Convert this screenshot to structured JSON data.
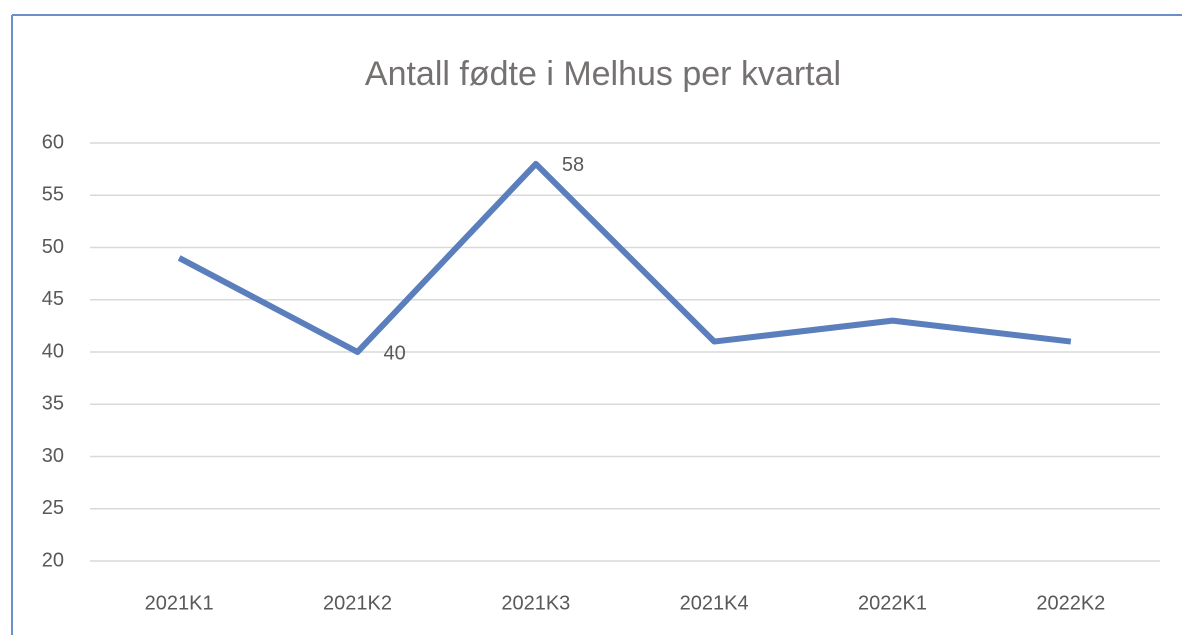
{
  "chart_data": {
    "type": "line",
    "title": "Antall fødte i Melhus per kvartal",
    "categories": [
      "2021K1",
      "2021K2",
      "2021K3",
      "2021K4",
      "2022K1",
      "2022K2"
    ],
    "values": [
      49,
      40,
      58,
      41,
      43,
      41
    ],
    "value_labels": [
      null,
      "40",
      "58",
      null,
      null,
      null
    ],
    "color": "#5b7fbd",
    "ylim": [
      20,
      60
    ],
    "yticks": [
      20,
      25,
      30,
      35,
      40,
      45,
      50,
      55,
      60
    ],
    "grid": true
  }
}
